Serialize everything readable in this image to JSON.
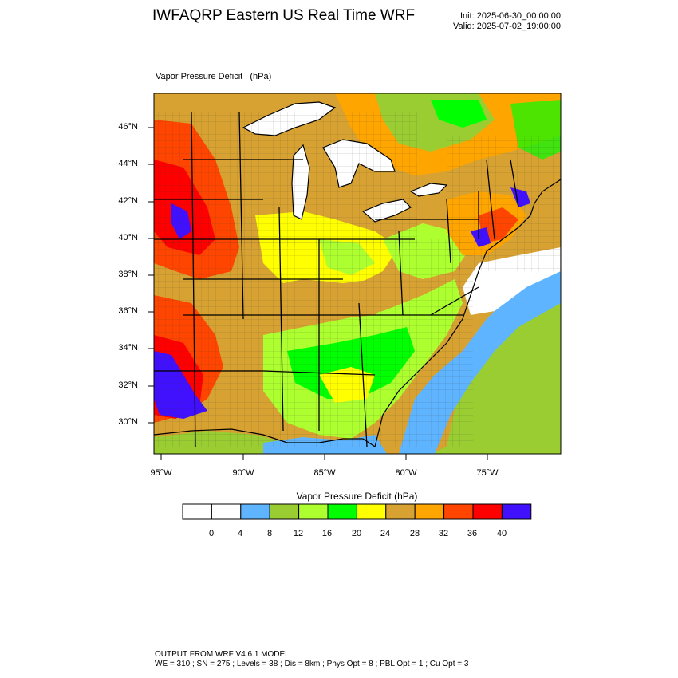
{
  "header": {
    "title": "IWFAQRP Eastern US Real Time WRF",
    "init": "Init: 2025-06-30_00:00:00",
    "valid": "Valid: 2025-07-02_19:00:00"
  },
  "map": {
    "field_title": "Vapor Pressure Deficit   (hPa)",
    "lat_labels": [
      "46°N",
      "44°N",
      "42°N",
      "40°N",
      "38°N",
      "36°N",
      "34°N",
      "32°N",
      "30°N"
    ],
    "lon_labels": [
      "95°W",
      "90°W",
      "85°W",
      "80°W",
      "75°W"
    ]
  },
  "colorbar": {
    "title": "Vapor Pressure Deficit  (hPa)",
    "labels": [
      "0",
      "4",
      "8",
      "12",
      "16",
      "20",
      "24",
      "28",
      "32",
      "36",
      "40"
    ],
    "colors": [
      "#ffffff",
      "#ffffff",
      "#5fb4ff",
      "#9acd32",
      "#adff2f",
      "#00ff00",
      "#ffff00",
      "#d7a232",
      "#ffa500",
      "#ff4500",
      "#ff0000",
      "#4010ff"
    ]
  },
  "footer": {
    "line1": "OUTPUT FROM WRF V4.6.1 MODEL",
    "line2": "WE = 310 ; SN = 275 ; Levels = 38 ; Dis = 8km ; Phys Opt = 8 ; PBL Opt = 1 ; Cu Opt = 3"
  }
}
